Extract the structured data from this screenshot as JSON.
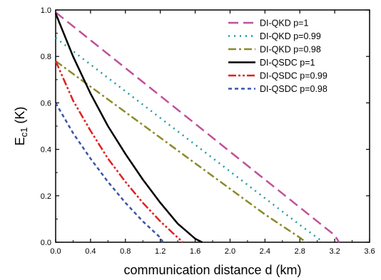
{
  "chart_data": {
    "type": "line",
    "xlabel": "communication distance d (km)",
    "ylabel_main": "E",
    "ylabel_sub": "c1",
    "ylabel_unit": " (K)",
    "xlim": [
      0,
      3.6
    ],
    "ylim": [
      0,
      1.0
    ],
    "xticks": [
      "0.0",
      "0.4",
      "0.8",
      "1.2",
      "1.6",
      "2.0",
      "2.4",
      "2.8",
      "3.2",
      "3.6"
    ],
    "yticks": [
      "0.0",
      "0.2",
      "0.4",
      "0.6",
      "0.8",
      "1.0"
    ],
    "grid": false,
    "legend_position": "top-right",
    "series": [
      {
        "name": "DI-QKD p=1",
        "color": "#c0509a",
        "dash": "long-dash",
        "x": [
          0,
          0.4,
          0.8,
          1.2,
          1.6,
          2.0,
          2.4,
          2.8,
          3.2,
          3.25
        ],
        "y": [
          0.99,
          0.87,
          0.75,
          0.63,
          0.51,
          0.39,
          0.27,
          0.15,
          0.03,
          0.0
        ]
      },
      {
        "name": "DI-QKD p=0.99",
        "color": "#1f9a9a",
        "dash": "dot",
        "x": [
          0,
          0.4,
          0.8,
          1.2,
          1.6,
          2.0,
          2.4,
          2.8,
          3.07
        ],
        "y": [
          0.88,
          0.765,
          0.65,
          0.535,
          0.42,
          0.305,
          0.19,
          0.075,
          0.0
        ]
      },
      {
        "name": "DI-QKD p=0.98",
        "color": "#8a8a2a",
        "dash": "dash-dot",
        "x": [
          0,
          0.4,
          0.8,
          1.2,
          1.6,
          2.0,
          2.4,
          2.8,
          2.87
        ],
        "y": [
          0.78,
          0.67,
          0.56,
          0.45,
          0.34,
          0.23,
          0.12,
          0.02,
          0.0
        ]
      },
      {
        "name": "DI-QKD p=1",
        "label_override": "DI-QSDC p=1",
        "color": "#000000",
        "dash": "solid",
        "x": [
          0,
          0.2,
          0.4,
          0.6,
          0.8,
          1.0,
          1.2,
          1.4,
          1.6,
          1.68
        ],
        "y": [
          0.985,
          0.8,
          0.64,
          0.5,
          0.38,
          0.27,
          0.17,
          0.08,
          0.015,
          0.0
        ]
      },
      {
        "name": "DI-QSDC p=0.99",
        "color": "#e02020",
        "dash": "dash-dot-dot",
        "x": [
          0,
          0.2,
          0.4,
          0.6,
          0.8,
          1.0,
          1.2,
          1.4,
          1.46
        ],
        "y": [
          0.78,
          0.61,
          0.48,
          0.36,
          0.26,
          0.17,
          0.09,
          0.02,
          0.0
        ]
      },
      {
        "name": "DI-QSDC p=0.98",
        "color": "#3a55a8",
        "dash": "short-dash",
        "x": [
          0,
          0.2,
          0.4,
          0.6,
          0.8,
          1.0,
          1.2,
          1.23
        ],
        "y": [
          0.6,
          0.47,
          0.36,
          0.26,
          0.17,
          0.09,
          0.02,
          0.0
        ]
      }
    ]
  }
}
